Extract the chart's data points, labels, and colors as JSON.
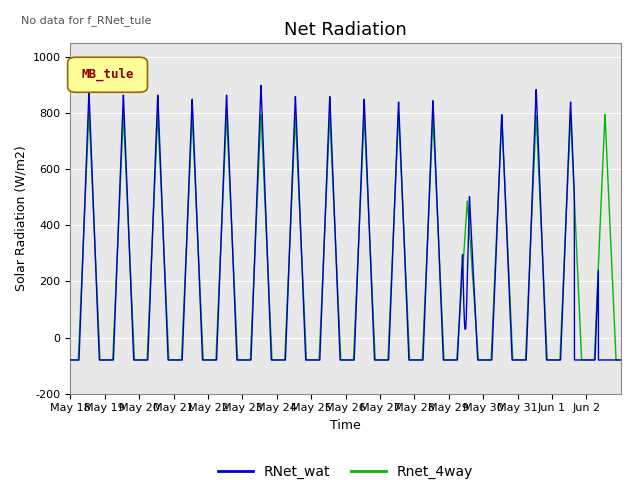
{
  "title": "Net Radiation",
  "ylabel": "Solar Radiation (W/m2)",
  "xlabel": "Time",
  "no_data_text": "No data for f_RNet_tule",
  "mb_tule_label": "MB_tule",
  "ylim": [
    -200,
    1050
  ],
  "yticks": [
    -200,
    0,
    200,
    400,
    600,
    800,
    1000
  ],
  "xtick_labels": [
    "May 18",
    "May 19",
    "May 20",
    "May 21",
    "May 22",
    "May 23",
    "May 24",
    "May 25",
    "May 26",
    "May 27",
    "May 28",
    "May 29",
    "May 30",
    "May 31",
    "Jun 1",
    "Jun 2"
  ],
  "color_blue": "#0000CD",
  "color_green": "#00BB00",
  "legend_labels": [
    "RNet_wat",
    "Rnet_4way"
  ],
  "bg_color": "#E8E8E8",
  "title_fontsize": 13,
  "label_fontsize": 9,
  "tick_fontsize": 8
}
